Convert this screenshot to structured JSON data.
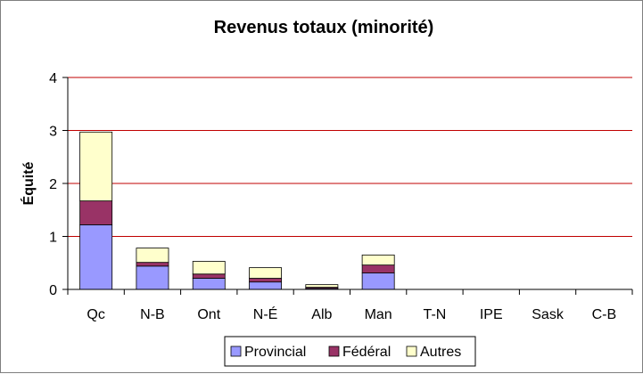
{
  "chart_data": {
    "type": "bar",
    "stacked": true,
    "title": "Revenus totaux (minorité)",
    "xlabel": "",
    "ylabel": "Équité",
    "ylim": [
      0,
      4
    ],
    "yticks": [
      "0",
      "1",
      "2",
      "3",
      "4"
    ],
    "grid": true,
    "legend_position": "bottom",
    "categories": [
      "Qc",
      "N-B",
      "Ont",
      "N-É",
      "Alb",
      "Man",
      "T-N",
      "IPE",
      "Sask",
      "C-B"
    ],
    "series": [
      {
        "name": "Provincial",
        "color": "#9999ff",
        "values": [
          1.22,
          0.44,
          0.21,
          0.14,
          0.02,
          0.31,
          0,
          0,
          0,
          0
        ]
      },
      {
        "name": "Fédéral",
        "color": "#993366",
        "values": [
          0.45,
          0.07,
          0.08,
          0.07,
          0.02,
          0.15,
          0,
          0,
          0,
          0
        ]
      },
      {
        "name": "Autres",
        "color": "#ffffcc",
        "values": [
          1.3,
          0.27,
          0.24,
          0.2,
          0.05,
          0.19,
          0,
          0,
          0,
          0
        ]
      }
    ],
    "colors": {
      "grid": "#c00000",
      "axis": "#000000",
      "plot_background": "#ffffff"
    }
  }
}
